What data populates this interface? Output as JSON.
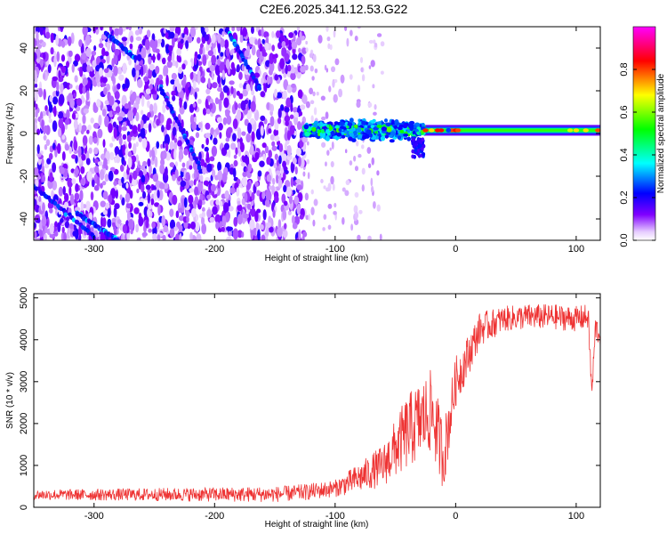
{
  "figure_title": "C2E6.2025.341.12.53.G22",
  "chart_data": [
    {
      "type": "heatmap",
      "title": "C2E6.2025.341.12.53.G22",
      "xlabel": "Height of straight line (km)",
      "ylabel": "Frequency (Hz)",
      "xlim": [
        -350,
        120
      ],
      "ylim": [
        -50,
        50
      ],
      "xticks": [
        -300,
        -200,
        -100,
        0,
        100
      ],
      "yticks": [
        -40,
        -20,
        0,
        20,
        40
      ],
      "colorbar": {
        "label": "Normalized spectral amplitude",
        "range": [
          0,
          1
        ],
        "ticks": [
          0.0,
          0.2,
          0.4,
          0.6,
          0.8
        ],
        "colors": [
          "#ffffff",
          "#8000ff",
          "#0000ff",
          "#00ffff",
          "#00ff00",
          "#ffff00",
          "#ff0000",
          "#ff00ff"
        ]
      },
      "features": {
        "noise_region_x": [
          -350,
          -125
        ],
        "carrier_frequency_hz": 1.5,
        "carrier_start_x": -125,
        "streaks": [
          {
            "x": [
              -360,
              -300
            ],
            "y": [
              -20,
              -48
            ]
          },
          {
            "x": [
              -290,
              -265
            ],
            "y": [
              47,
              35
            ]
          },
          {
            "x": [
              -245,
              -212
            ],
            "y": [
              22,
              -16
            ]
          },
          {
            "x": [
              -190,
              -162
            ],
            "y": [
              49,
              21
            ]
          },
          {
            "x": [
              -315,
              -280
            ],
            "y": [
              -37,
              -50
            ]
          }
        ]
      }
    },
    {
      "type": "line",
      "title": "",
      "xlabel": "Height of straight line (km)",
      "ylabel": "SNR (10 * v/v)",
      "xlim": [
        -350,
        120
      ],
      "ylim": [
        0,
        5100
      ],
      "xticks": [
        -300,
        -200,
        -100,
        0,
        100
      ],
      "yticks": [
        0,
        1000,
        2000,
        3000,
        4000,
        5000
      ],
      "color": "#ee3333",
      "envelope": {
        "x": [
          -350,
          -150,
          -125,
          -100,
          -80,
          -60,
          -40,
          -20,
          -10,
          0,
          10,
          20,
          40,
          60,
          80,
          100,
          110,
          113,
          116,
          120
        ],
        "y": [
          300,
          310,
          360,
          450,
          700,
          1000,
          1800,
          2300,
          1200,
          3000,
          3600,
          4250,
          4500,
          4550,
          4550,
          4500,
          4550,
          2700,
          4300,
          4100
        ]
      },
      "noise_amplitude": {
        "x": [
          -350,
          -100,
          -60,
          -40,
          -20,
          0,
          20,
          40,
          120
        ],
        "y": [
          120,
          200,
          500,
          900,
          1000,
          600,
          400,
          300,
          300
        ]
      }
    }
  ]
}
